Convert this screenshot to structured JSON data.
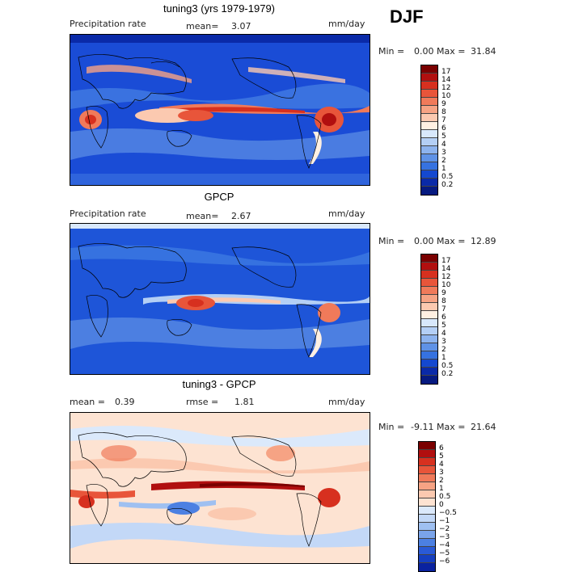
{
  "season": "DJF",
  "panels": [
    {
      "title": "tuning3 (yrs 1979-1979)",
      "variable": "Precipitation rate",
      "mean_label": "mean=",
      "mean_value": "3.07",
      "units": "mm/day",
      "min_label": "Min =",
      "min_value": "0.00",
      "max_label": "Max =",
      "max_value": "31.84"
    },
    {
      "title": "GPCP",
      "variable": "Precipitation rate",
      "mean_label": "mean=",
      "mean_value": "2.67",
      "units": "mm/day",
      "min_label": "Min =",
      "min_value": "0.00",
      "max_label": "Max =",
      "max_value": "12.89"
    },
    {
      "title": "tuning3 - GPCP",
      "mean_label": "mean =",
      "mean_value": "0.39",
      "rmse_label": "rmse =",
      "rmse_value": "1.81",
      "units": "mm/day",
      "min_label": "Min =",
      "min_value": "-9.11",
      "max_label": "Max =",
      "max_value": "21.64"
    }
  ],
  "colorbars": {
    "precip": {
      "labels": [
        "17",
        "14",
        "12",
        "10",
        "9",
        "8",
        "7",
        "6",
        "5",
        "4",
        "3",
        "2",
        "1",
        "0.5",
        "0.2"
      ],
      "colors": [
        "#7a0000",
        "#b10f0f",
        "#d7301f",
        "#e8553a",
        "#f07a5a",
        "#f6a384",
        "#fbc9b0",
        "#fff0e2",
        "#d8e8fb",
        "#b4cff5",
        "#8db3ee",
        "#5f92e6",
        "#3672e0",
        "#1448d0",
        "#0a2aa8",
        "#061a80"
      ]
    },
    "diff": {
      "labels": [
        "6",
        "5",
        "4",
        "3",
        "2",
        "1",
        "0.5",
        "0",
        "−0.5",
        "−1",
        "−2",
        "−3",
        "−4",
        "−5",
        "−6"
      ],
      "colors": [
        "#7a0000",
        "#b10f0f",
        "#d7301f",
        "#e8553a",
        "#f07a5a",
        "#f6a384",
        "#fbc9b0",
        "#fde3d2",
        "#dbe9fb",
        "#c3d8f7",
        "#9fc0f1",
        "#7aa4ea",
        "#4c80e2",
        "#2a5ad6",
        "#163fc0",
        "#0a22a0"
      ]
    }
  }
}
